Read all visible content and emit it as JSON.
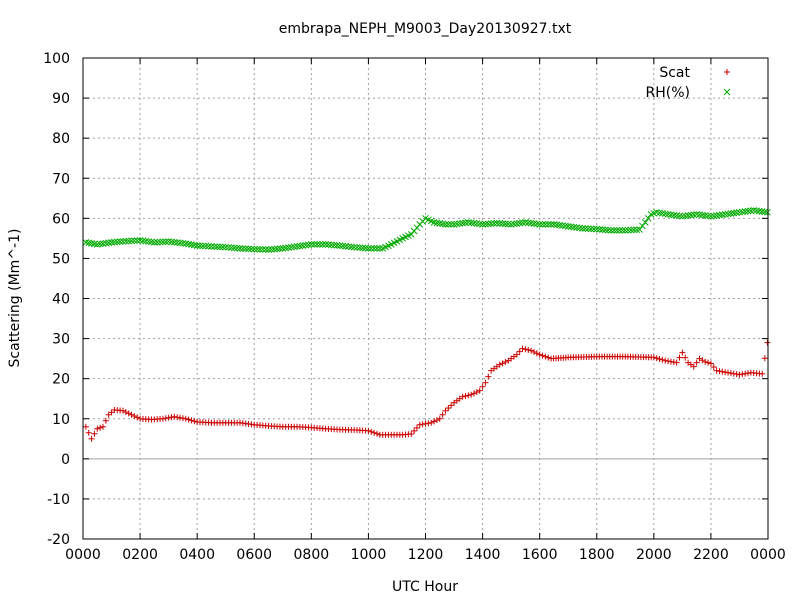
{
  "chart_data": {
    "type": "scatter",
    "title": "embrapa_NEPH_M9003_Day20130927.txt",
    "xlabel": "UTC Hour",
    "ylabel": "Scattering (Mm^-1)",
    "xlim": [
      0,
      2400
    ],
    "ylim": [
      -20,
      100
    ],
    "grid": true,
    "legend_position": "top-right",
    "x_ticks": [
      "0000",
      "0200",
      "0400",
      "0600",
      "0800",
      "1000",
      "1200",
      "1400",
      "1600",
      "1800",
      "2000",
      "2200",
      "0000"
    ],
    "y_ticks": [
      "-20",
      "-10",
      "0",
      "10",
      "20",
      "30",
      "40",
      "50",
      "60",
      "70",
      "80",
      "90",
      "100"
    ],
    "series": [
      {
        "name": "Scat",
        "marker": "plus",
        "color": "#cc0000",
        "points": [
          [
            10,
            8
          ],
          [
            30,
            5
          ],
          [
            50,
            7.5
          ],
          [
            70,
            8
          ],
          [
            90,
            11
          ],
          [
            110,
            12.2
          ],
          [
            140,
            12
          ],
          [
            170,
            11
          ],
          [
            200,
            10
          ],
          [
            240,
            9.8
          ],
          [
            280,
            10
          ],
          [
            320,
            10.5
          ],
          [
            360,
            10
          ],
          [
            400,
            9.2
          ],
          [
            450,
            9
          ],
          [
            500,
            9
          ],
          [
            550,
            9
          ],
          [
            600,
            8.5
          ],
          [
            650,
            8.2
          ],
          [
            700,
            8
          ],
          [
            750,
            8
          ],
          [
            800,
            7.8
          ],
          [
            850,
            7.5
          ],
          [
            900,
            7.3
          ],
          [
            950,
            7.2
          ],
          [
            1000,
            7
          ],
          [
            1040,
            6
          ],
          [
            1080,
            6
          ],
          [
            1120,
            6
          ],
          [
            1150,
            6.2
          ],
          [
            1180,
            8.5
          ],
          [
            1220,
            9
          ],
          [
            1250,
            10
          ],
          [
            1270,
            12
          ],
          [
            1300,
            14
          ],
          [
            1330,
            15.5
          ],
          [
            1360,
            16
          ],
          [
            1390,
            17
          ],
          [
            1410,
            19
          ],
          [
            1430,
            22
          ],
          [
            1460,
            23.5
          ],
          [
            1490,
            24.5
          ],
          [
            1520,
            26
          ],
          [
            1540,
            27.5
          ],
          [
            1570,
            27
          ],
          [
            1600,
            26
          ],
          [
            1640,
            25
          ],
          [
            1700,
            25.3
          ],
          [
            1800,
            25.5
          ],
          [
            1900,
            25.5
          ],
          [
            2000,
            25.3
          ],
          [
            2040,
            24.5
          ],
          [
            2080,
            24
          ],
          [
            2100,
            26.5
          ],
          [
            2120,
            24
          ],
          [
            2140,
            23
          ],
          [
            2160,
            25
          ],
          [
            2180,
            24.2
          ],
          [
            2200,
            23.8
          ],
          [
            2220,
            22
          ],
          [
            2260,
            21.5
          ],
          [
            2300,
            21
          ],
          [
            2340,
            21.5
          ],
          [
            2380,
            21.2
          ],
          [
            2398,
            29
          ]
        ]
      },
      {
        "name": "RH(%)",
        "marker": "cross",
        "color": "#00aa00",
        "points": [
          [
            10,
            54
          ],
          [
            50,
            53.5
          ],
          [
            100,
            54
          ],
          [
            150,
            54.3
          ],
          [
            200,
            54.5
          ],
          [
            250,
            54
          ],
          [
            300,
            54.2
          ],
          [
            350,
            53.8
          ],
          [
            400,
            53.2
          ],
          [
            450,
            53
          ],
          [
            500,
            52.8
          ],
          [
            550,
            52.5
          ],
          [
            600,
            52.3
          ],
          [
            650,
            52.2
          ],
          [
            700,
            52.5
          ],
          [
            750,
            53
          ],
          [
            800,
            53.5
          ],
          [
            850,
            53.5
          ],
          [
            900,
            53.2
          ],
          [
            950,
            52.8
          ],
          [
            1000,
            52.5
          ],
          [
            1050,
            52.5
          ],
          [
            1080,
            53.5
          ],
          [
            1120,
            55
          ],
          [
            1150,
            56
          ],
          [
            1180,
            58.5
          ],
          [
            1200,
            60
          ],
          [
            1230,
            59
          ],
          [
            1270,
            58.5
          ],
          [
            1300,
            58.5
          ],
          [
            1350,
            59
          ],
          [
            1400,
            58.5
          ],
          [
            1450,
            58.8
          ],
          [
            1500,
            58.5
          ],
          [
            1550,
            59
          ],
          [
            1600,
            58.5
          ],
          [
            1650,
            58.5
          ],
          [
            1700,
            58
          ],
          [
            1750,
            57.5
          ],
          [
            1800,
            57.3
          ],
          [
            1850,
            57
          ],
          [
            1900,
            57
          ],
          [
            1950,
            57.2
          ],
          [
            1970,
            59
          ],
          [
            1990,
            61
          ],
          [
            2010,
            61.5
          ],
          [
            2050,
            61
          ],
          [
            2100,
            60.5
          ],
          [
            2150,
            61
          ],
          [
            2200,
            60.5
          ],
          [
            2250,
            61
          ],
          [
            2300,
            61.5
          ],
          [
            2350,
            62
          ],
          [
            2398,
            61.5
          ]
        ]
      }
    ]
  }
}
